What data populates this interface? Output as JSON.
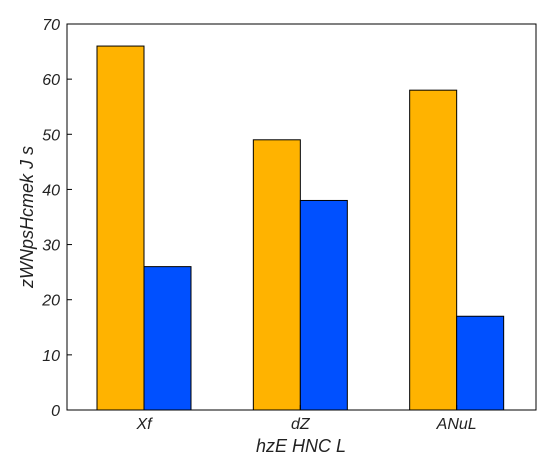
{
  "chart_data": {
    "type": "bar",
    "categories": [
      "Xf",
      "dZ",
      "ANuL"
    ],
    "series": [
      {
        "values": [
          66,
          49,
          58
        ],
        "color": "#FFB300"
      },
      {
        "values": [
          26,
          38,
          17
        ],
        "color": "#0050FF"
      }
    ],
    "xlabel": "hzE HNC  L",
    "ylabel": "zWNpsHcmek J s",
    "ylim": [
      0,
      70
    ],
    "yticks": [
      0,
      10,
      20,
      30,
      40,
      50,
      60,
      70
    ],
    "grid": false,
    "legend": "none"
  }
}
